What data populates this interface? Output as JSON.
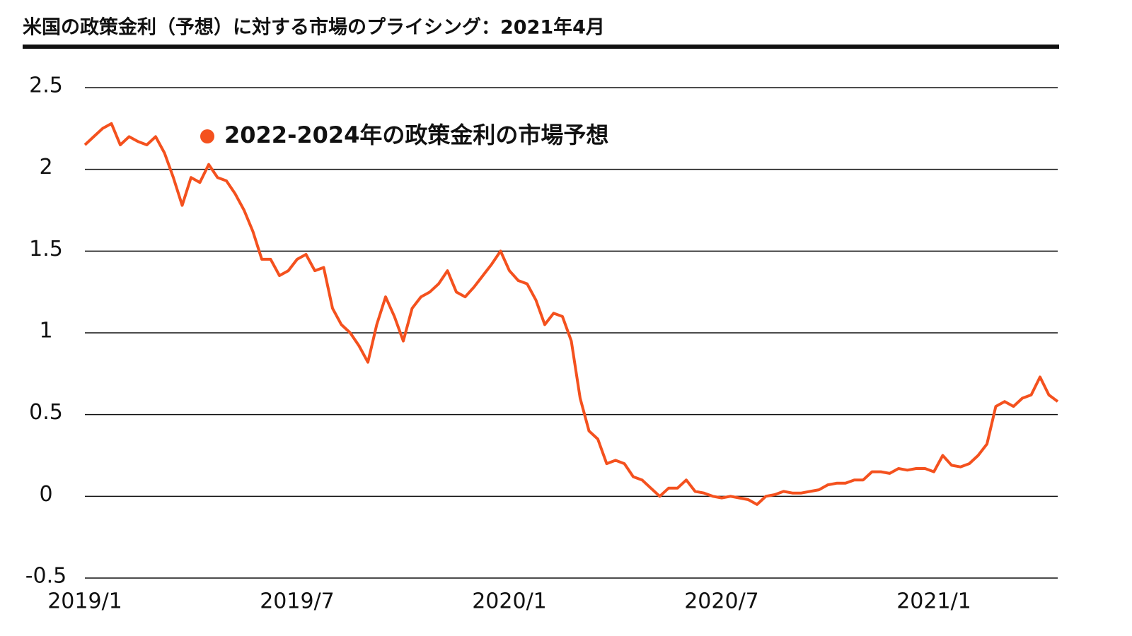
{
  "chart_data": {
    "type": "line",
    "title": "米国の政策金利（予想）に対する市場のプライシング：2021年4月",
    "categories": [
      "2019/1",
      null,
      null,
      null,
      null,
      null,
      null,
      null,
      null,
      null,
      null,
      null,
      null,
      null,
      null,
      null,
      null,
      null,
      null,
      null,
      null,
      null,
      null,
      null,
      "2019/7",
      null,
      null,
      null,
      null,
      null,
      null,
      null,
      null,
      null,
      null,
      null,
      null,
      null,
      null,
      null,
      null,
      null,
      null,
      null,
      null,
      null,
      null,
      null,
      "2020/1",
      null,
      null,
      null,
      null,
      null,
      null,
      null,
      null,
      null,
      null,
      null,
      null,
      null,
      null,
      null,
      null,
      null,
      null,
      null,
      null,
      null,
      null,
      null,
      "2020/7",
      null,
      null,
      null,
      null,
      null,
      null,
      null,
      null,
      null,
      null,
      null,
      null,
      null,
      null,
      null,
      null,
      null,
      null,
      null,
      null,
      null,
      null,
      null,
      "2021/1",
      null,
      null,
      null,
      null,
      null,
      null,
      null,
      null,
      null,
      null,
      null,
      null,
      null,
      null
    ],
    "series": [
      {
        "name": "2022-2024年の政策金利の市場予想",
        "color": "#f4511e",
        "values": [
          2.15,
          2.2,
          2.25,
          2.28,
          2.15,
          2.2,
          2.17,
          2.15,
          2.2,
          2.1,
          1.95,
          1.78,
          1.95,
          1.92,
          2.03,
          1.95,
          1.93,
          1.85,
          1.75,
          1.62,
          1.45,
          1.45,
          1.35,
          1.38,
          1.45,
          1.48,
          1.38,
          1.4,
          1.15,
          1.05,
          1.0,
          0.92,
          0.82,
          1.05,
          1.22,
          1.1,
          0.95,
          1.15,
          1.22,
          1.25,
          1.3,
          1.38,
          1.25,
          1.22,
          1.28,
          1.35,
          1.42,
          1.5,
          1.38,
          1.32,
          1.3,
          1.2,
          1.05,
          1.12,
          1.1,
          0.95,
          0.6,
          0.4,
          0.35,
          0.2,
          0.22,
          0.2,
          0.12,
          0.1,
          0.05,
          0.0,
          0.05,
          0.05,
          0.1,
          0.03,
          0.02,
          0.0,
          -0.01,
          0.0,
          -0.01,
          -0.02,
          -0.05,
          0.0,
          0.01,
          0.03,
          0.02,
          0.02,
          0.03,
          0.04,
          0.07,
          0.08,
          0.08,
          0.1,
          0.1,
          0.15,
          0.15,
          0.14,
          0.17,
          0.16,
          0.17,
          0.17,
          0.15,
          0.25,
          0.19,
          0.18,
          0.2,
          0.25,
          0.32,
          0.55,
          0.58,
          0.55,
          0.6,
          0.62,
          0.73,
          0.62,
          0.58
        ]
      }
    ],
    "ylim": [
      -0.5,
      2.5
    ],
    "yticks": [
      -0.5,
      0,
      0.5,
      1,
      1.5,
      2,
      2.5
    ],
    "grid": true,
    "legend": "top-left"
  }
}
